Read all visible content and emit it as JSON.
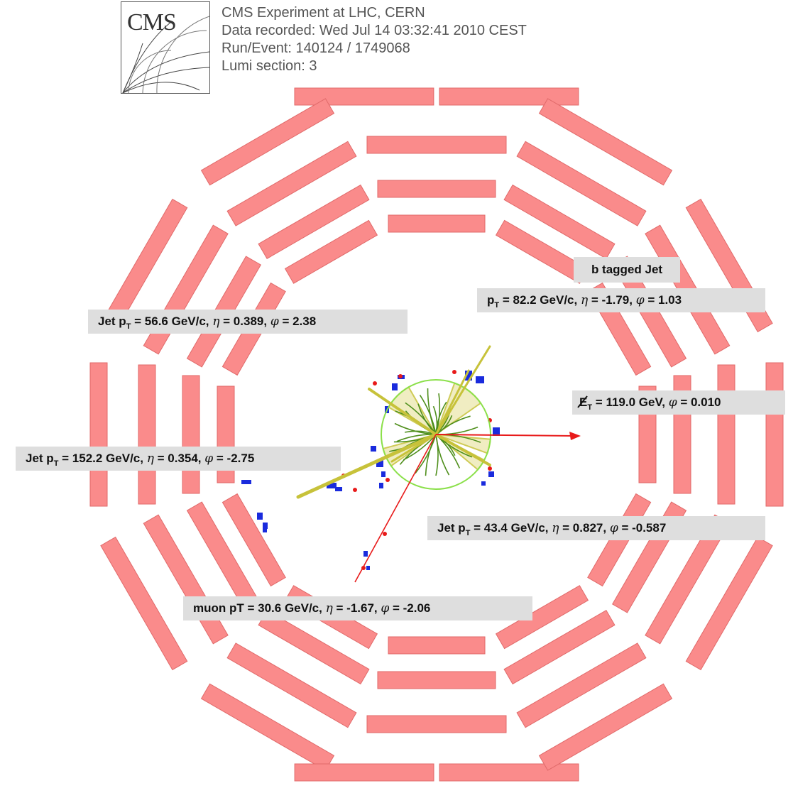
{
  "header": {
    "logo_text": "CMS",
    "experiment": "CMS Experiment at LHC, CERN",
    "data_recorded": "Data recorded: Wed Jul 14 03:32:41 2010 CEST",
    "run_event": "Run/Event: 140124 / 1749068",
    "lumi_section": "Lumi section: 3"
  },
  "colors": {
    "muon_chambers": "#fa8b8b",
    "muon_chamber_edge": "#e06a6a",
    "tracker_circle": "#8be04a",
    "tracks": "#4f8f1c",
    "jets": "#c7c23a",
    "jet_fill": "#eeeab8",
    "calo_deposits": "#1a2bdd",
    "met_arrow": "#e81a1a",
    "label_background": "#dedede"
  },
  "labels": {
    "bjet_title": "b tagged Jet",
    "bjet": {
      "pre": "p",
      "sub": "T",
      "post": " = 82.2 GeV/c, ",
      "eta_sym": "η",
      "eta": " = -1.79, ",
      "phi_sym": "φ",
      "phi": " = 1.03"
    },
    "jet1": {
      "pre": "Jet p",
      "sub": "T",
      "post": " = 56.6 GeV/c,  ",
      "eta_sym": "η",
      "eta": "  = 0.389, ",
      "phi_sym": "φ",
      "phi": " = 2.38"
    },
    "met": {
      "pre": "E",
      "sub": "T",
      "post": " = 119.0 GeV, ",
      "phi_sym": "φ",
      "phi": " = 0.010"
    },
    "jet2": {
      "pre": "Jet p",
      "sub": "T",
      "post": " = 152.2 GeV/c, ",
      "eta_sym": "η",
      "eta": " = 0.354, ",
      "phi_sym": "φ",
      "phi": " = -2.75"
    },
    "jet3": {
      "pre": "Jet p",
      "sub": "T",
      "post": " = 43.4 GeV/c, ",
      "eta_sym": "η",
      "eta": "  = 0.827, ",
      "phi_sym": "φ",
      "phi": "  = -0.587"
    },
    "muon": {
      "pre": "muon pT = 30.6 GeV/c,  ",
      "eta_sym": "η",
      "eta": "  = -1.67, ",
      "phi_sym": "φ",
      "phi": " = -2.06"
    }
  }
}
